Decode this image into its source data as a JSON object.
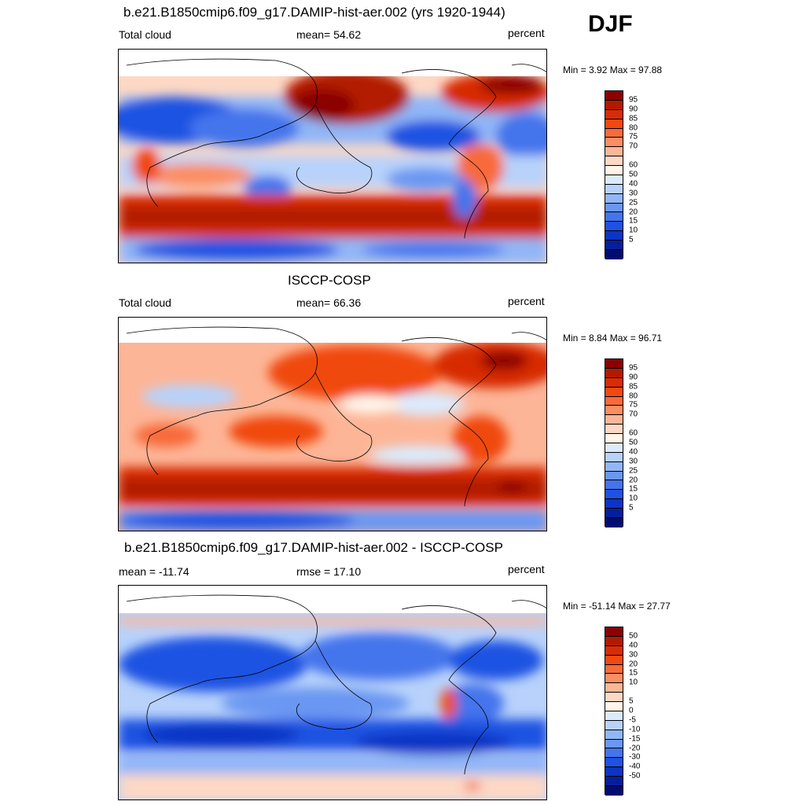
{
  "season": "DJF",
  "panels": [
    {
      "id": "model",
      "title": "b.e21.B1850cmip6.f09_g17.DAMIP-hist-aer.002 (yrs 1920-1944)",
      "left_label": "Total cloud",
      "center_label": "mean=  54.62",
      "right_label": "percent",
      "minmax": "Min =   3.92 Max =  97.88",
      "colorbar": {
        "colors": [
          "#8b0000",
          "#b21a00",
          "#d72c05",
          "#f04a10",
          "#f86a3a",
          "#fb8e63",
          "#fdb597",
          "#fdd8c5",
          "#fff5ea",
          "#dbeafd",
          "#b8d2fb",
          "#91b6f7",
          "#6a97f2",
          "#4474ec",
          "#1f52e2",
          "#0c34c5",
          "#051f9c",
          "#000c70"
        ],
        "labels": [
          "95",
          "90",
          "85",
          "80",
          "75",
          "70",
          "60",
          "50",
          "40",
          "30",
          "25",
          "20",
          "15",
          "10",
          "5"
        ]
      }
    },
    {
      "id": "obs",
      "title": "ISCCP-COSP",
      "left_label": "Total cloud",
      "center_label": "mean=  66.36",
      "right_label": "percent",
      "minmax": "Min =   8.84 Max =  96.71",
      "colorbar": {
        "colors": [
          "#8b0000",
          "#b21a00",
          "#d72c05",
          "#f04a10",
          "#f86a3a",
          "#fb8e63",
          "#fdb597",
          "#fdd8c5",
          "#fff5ea",
          "#dbeafd",
          "#b8d2fb",
          "#91b6f7",
          "#6a97f2",
          "#4474ec",
          "#1f52e2",
          "#0c34c5",
          "#051f9c",
          "#000c70"
        ],
        "labels": [
          "95",
          "90",
          "85",
          "80",
          "75",
          "70",
          "60",
          "50",
          "40",
          "30",
          "25",
          "20",
          "15",
          "10",
          "5"
        ]
      }
    },
    {
      "id": "diff",
      "title": "b.e21.B1850cmip6.f09_g17.DAMIP-hist-aer.002 - ISCCP-COSP",
      "left_label": "mean = -11.74",
      "center_label": "rmse =  17.10",
      "right_label": "percent",
      "minmax": "Min = -51.14 Max =  27.77",
      "colorbar": {
        "colors": [
          "#8b0000",
          "#b21a00",
          "#d72c05",
          "#f04a10",
          "#f86a3a",
          "#fb8e63",
          "#fdb597",
          "#fdd8c5",
          "#fff5ea",
          "#dbeafd",
          "#b8d2fb",
          "#91b6f7",
          "#6a97f2",
          "#4474ec",
          "#1f52e2",
          "#0c34c5",
          "#051f9c",
          "#000c70"
        ],
        "labels": [
          "50",
          "40",
          "30",
          "20",
          "15",
          "10",
          "5",
          "0",
          "-5",
          "-10",
          "-15",
          "-20",
          "-30",
          "-40",
          "-50"
        ]
      }
    }
  ]
}
